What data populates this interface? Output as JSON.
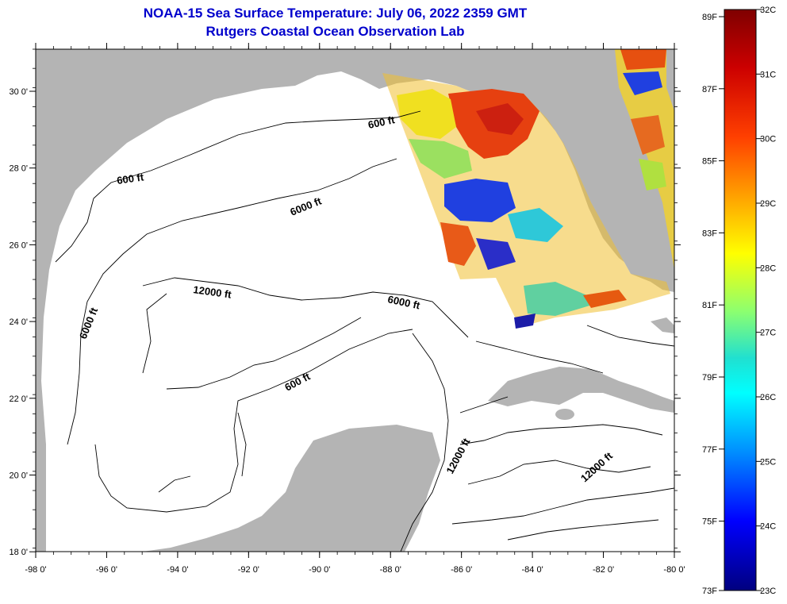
{
  "header": {
    "title": "NOAA-15 Sea Surface Temperature:  July 06, 2022 2359 GMT",
    "subtitle": "Rutgers Coastal Ocean Observation Lab"
  },
  "axes": {
    "x_ticks": [
      "-98 0'",
      "-96 0'",
      "-94 0'",
      "-92 0'",
      "-90 0'",
      "-88 0'",
      "-86 0'",
      "-84 0'",
      "-82 0'",
      "-80 0'"
    ],
    "y_ticks": [
      "30 0'",
      "28 0'",
      "26 0'",
      "24 0'",
      "22 0'",
      "20 0'",
      "18 0'"
    ]
  },
  "depth_contours": [
    {
      "label": "600 ft"
    },
    {
      "label": "600 ft"
    },
    {
      "label": "6000 ft"
    },
    {
      "label": "12000 ft"
    },
    {
      "label": "6000 ft"
    },
    {
      "label": "6000 ft"
    },
    {
      "label": "600 ft"
    },
    {
      "label": "12000 ft"
    },
    {
      "label": "12000 ft"
    }
  ],
  "colorbar": {
    "fahrenheit": [
      "89F",
      "87F",
      "85F",
      "83F",
      "81F",
      "79F",
      "77F",
      "75F",
      "73F"
    ],
    "celsius": [
      "32C",
      "31C",
      "30C",
      "29C",
      "28C",
      "27C",
      "26C",
      "25C",
      "24C",
      "23C"
    ]
  },
  "colors": {
    "land": "#b4b4b4",
    "water": "#ffffff",
    "title": "#0000cc"
  }
}
